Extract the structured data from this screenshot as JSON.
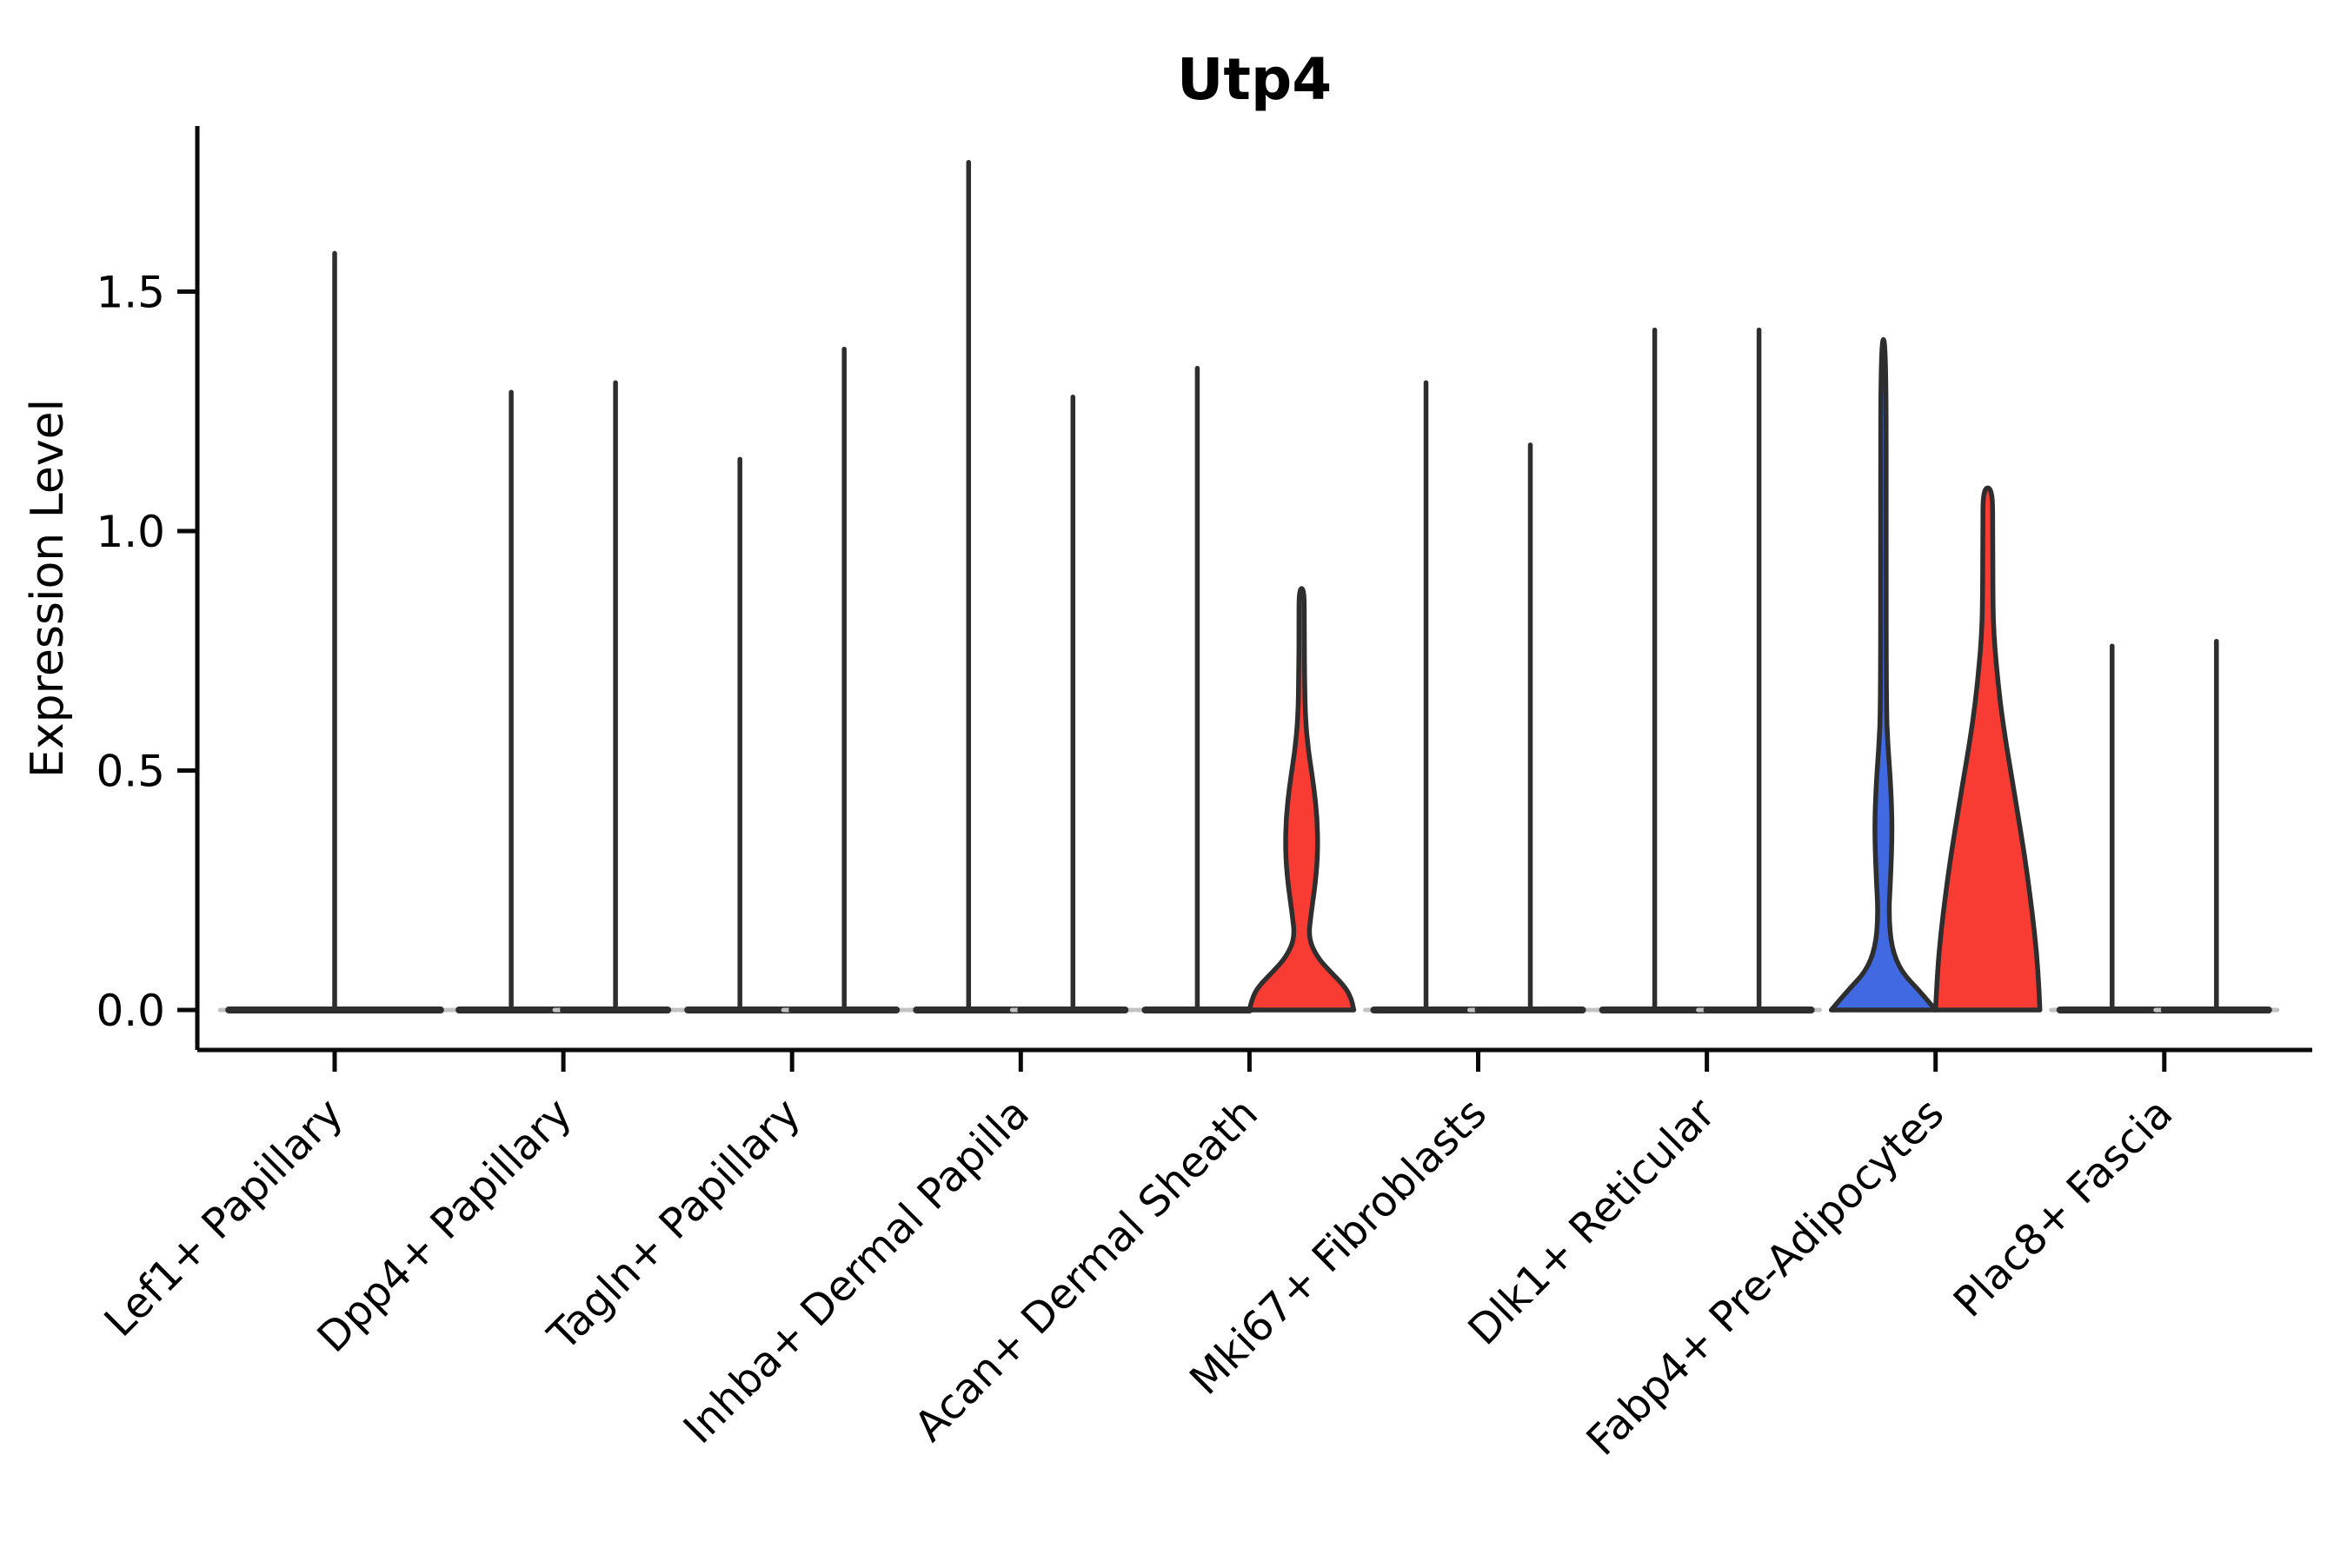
{
  "chart_data": {
    "type": "violin",
    "title": "Utp4",
    "ylabel": "Expression Level",
    "xlabel": "",
    "ylim": [
      0,
      1.85
    ],
    "yticks": [
      "0.0",
      "0.5",
      "1.0",
      "1.5"
    ],
    "ytick_values": [
      0.0,
      0.5,
      1.0,
      1.5
    ],
    "grid": false,
    "legend": "none",
    "colors": {
      "split_left_fill": "#4169e1",
      "split_right_fill": "#f93c33",
      "violin_outline": "#2e2e2e",
      "axis": "#0a0a0a",
      "base_tip": "#c2c2c2"
    },
    "categories": [
      "Lef1+ Papillary",
      "Dpp4+ Papillary",
      "Tagln+ Papillary",
      "Inhba+ Dermal Papilla",
      "Acan+ Dermal Sheath",
      "Mki67+ Fibroblasts",
      "Dlk1+ Reticular",
      "Fabp4+ Pre-Adipocytes",
      "Plac8+ Fascia"
    ],
    "groups": [
      {
        "category": "Lef1+ Papillary",
        "violins": [
          {
            "side": "full",
            "style": "spike",
            "fill": "none",
            "max": 1.58,
            "base_halfwidth": 2.03
          }
        ]
      },
      {
        "category": "Dpp4+ Papillary",
        "violins": [
          {
            "side": "left",
            "style": "spike",
            "fill": "none",
            "max": 1.29,
            "base_halfwidth": 1.0
          },
          {
            "side": "right",
            "style": "spike",
            "fill": "none",
            "max": 1.31,
            "base_halfwidth": 1.0
          }
        ]
      },
      {
        "category": "Tagln+ Papillary",
        "violins": [
          {
            "side": "left",
            "style": "spike",
            "fill": "none",
            "max": 1.15,
            "base_halfwidth": 1.0
          },
          {
            "side": "right",
            "style": "spike",
            "fill": "none",
            "max": 1.38,
            "base_halfwidth": 1.0
          }
        ]
      },
      {
        "category": "Inhba+ Dermal Papilla",
        "violins": [
          {
            "side": "left",
            "style": "spike",
            "fill": "none",
            "max": 1.77,
            "base_halfwidth": 1.0
          },
          {
            "side": "right",
            "style": "spike",
            "fill": "none",
            "max": 1.28,
            "base_halfwidth": 1.0
          }
        ]
      },
      {
        "category": "Acan+ Dermal Sheath",
        "violins": [
          {
            "side": "left",
            "style": "spike",
            "fill": "none",
            "max": 1.34,
            "base_halfwidth": 1.0
          },
          {
            "side": "right",
            "style": "violin",
            "fill": "split_right_fill",
            "max": 0.88,
            "profile": [
              [
                0,
                1.0
              ],
              [
                0.025,
                0.95
              ],
              [
                0.05,
                0.82
              ],
              [
                0.08,
                0.55
              ],
              [
                0.11,
                0.3
              ],
              [
                0.15,
                0.13
              ],
              [
                0.2,
                0.18
              ],
              [
                0.27,
                0.27
              ],
              [
                0.33,
                0.31
              ],
              [
                0.4,
                0.3
              ],
              [
                0.47,
                0.23
              ],
              [
                0.54,
                0.13
              ],
              [
                0.61,
                0.07
              ],
              [
                0.7,
                0.055
              ],
              [
                0.8,
                0.05
              ],
              [
                0.88,
                0.05
              ]
            ]
          }
        ]
      },
      {
        "category": "Mki67+ Fibroblasts",
        "violins": [
          {
            "side": "left",
            "style": "spike",
            "fill": "none",
            "max": 1.31,
            "base_halfwidth": 1.0
          },
          {
            "side": "right",
            "style": "spike",
            "fill": "none",
            "max": 1.18,
            "base_halfwidth": 1.0
          }
        ]
      },
      {
        "category": "Dlk1+ Reticular",
        "violins": [
          {
            "side": "left",
            "style": "spike",
            "fill": "none",
            "max": 1.42,
            "base_halfwidth": 1.0
          },
          {
            "side": "right",
            "style": "spike",
            "fill": "none",
            "max": 1.42,
            "base_halfwidth": 1.0
          }
        ]
      },
      {
        "category": "Fabp4+ Pre-Adipocytes",
        "violins": [
          {
            "side": "left",
            "style": "violin",
            "fill": "split_left_fill",
            "max": 1.4,
            "profile": [
              [
                0,
                1.0
              ],
              [
                0.04,
                0.69
              ],
              [
                0.08,
                0.34
              ],
              [
                0.13,
                0.155
              ],
              [
                0.2,
                0.1
              ],
              [
                0.28,
                0.14
              ],
              [
                0.38,
                0.17
              ],
              [
                0.47,
                0.14
              ],
              [
                0.55,
                0.086
              ],
              [
                0.63,
                0.055
              ],
              [
                1.0,
                0.052
              ],
              [
                1.4,
                0.05
              ]
            ]
          },
          {
            "side": "right",
            "style": "violin",
            "fill": "split_right_fill",
            "max": 1.09,
            "profile": [
              [
                0,
                1.0
              ],
              [
                0.08,
                0.965
              ],
              [
                0.16,
                0.9
              ],
              [
                0.24,
                0.81
              ],
              [
                0.32,
                0.71
              ],
              [
                0.4,
                0.59
              ],
              [
                0.48,
                0.47
              ],
              [
                0.56,
                0.345
              ],
              [
                0.64,
                0.24
              ],
              [
                0.72,
                0.165
              ],
              [
                0.78,
                0.12
              ],
              [
                0.84,
                0.1
              ],
              [
                1.0,
                0.095
              ],
              [
                1.09,
                0.09
              ]
            ]
          }
        ]
      },
      {
        "category": "Plac8+ Fascia",
        "violins": [
          {
            "side": "left",
            "style": "spike",
            "fill": "none",
            "max": 0.76,
            "base_halfwidth": 1.0
          },
          {
            "side": "right",
            "style": "spike",
            "fill": "none",
            "max": 0.77,
            "base_halfwidth": 1.0
          }
        ]
      }
    ]
  }
}
